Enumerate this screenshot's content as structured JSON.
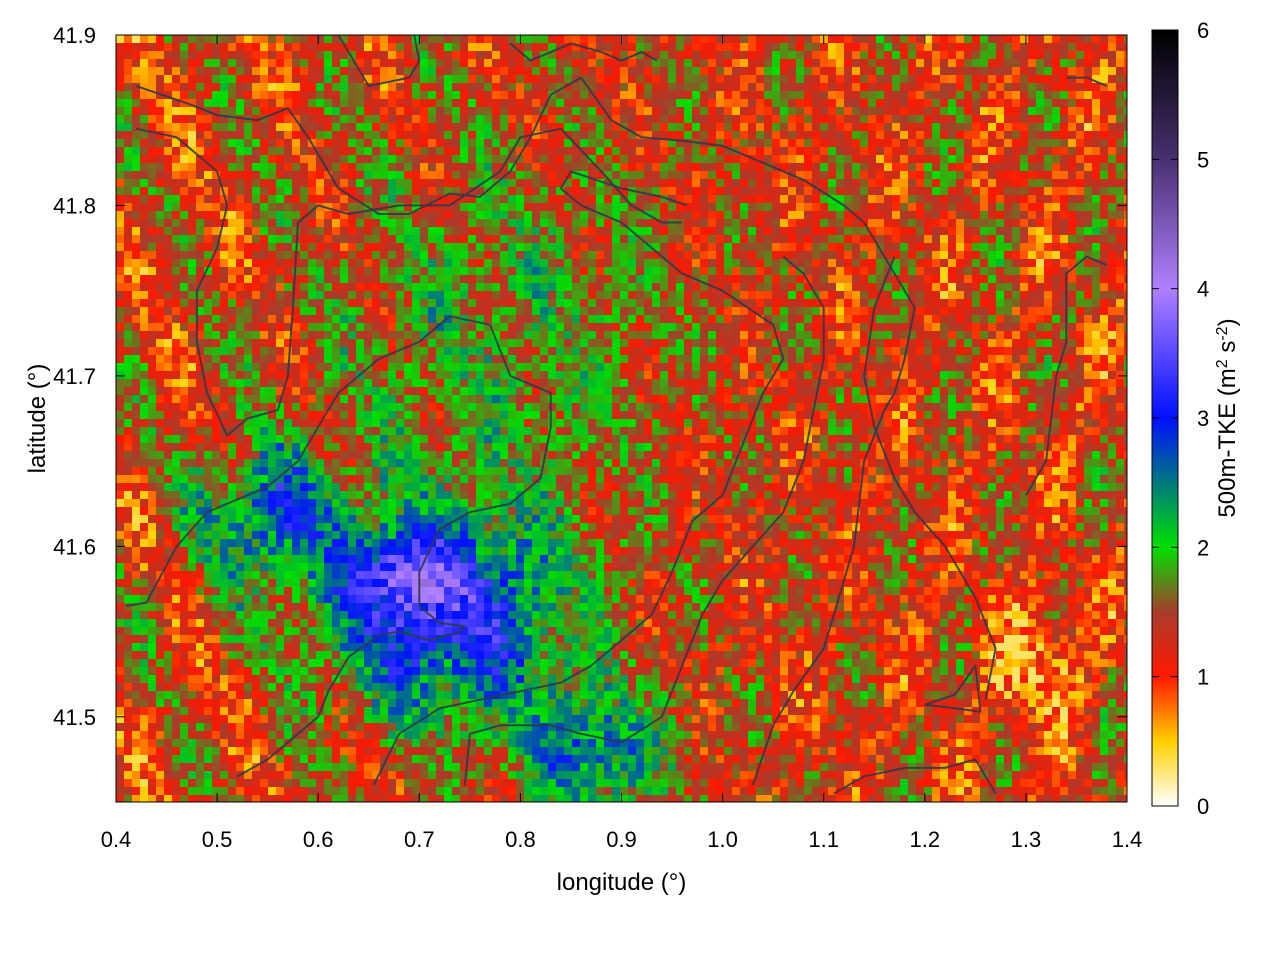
{
  "chart_data": {
    "type": "heatmap",
    "title": "",
    "xlabel": "longitude (°)",
    "ylabel": "latitude (°)",
    "xlim": [
      0.4,
      1.4
    ],
    "ylim": [
      41.45,
      41.9
    ],
    "xticks": [
      0.4,
      0.5,
      0.6,
      0.7,
      0.8,
      0.9,
      1.0,
      1.1,
      1.2,
      1.3,
      1.4
    ],
    "xtick_labels": [
      "0.4",
      "0.5",
      "0.6",
      "0.7",
      "0.8",
      "0.9",
      "1.0",
      "1.1",
      "1.2",
      "1.3",
      "1.4"
    ],
    "yticks": [
      41.5,
      41.6,
      41.7,
      41.8,
      41.9
    ],
    "ytick_labels": [
      "41.5",
      "41.6",
      "41.7",
      "41.8",
      "41.9"
    ],
    "grid": false,
    "colorbar": {
      "label": "500m-TKE (m² s⁻²)",
      "label_main": "500m-TKE (m",
      "label_sup1": "2",
      "label_mid": " s",
      "label_sup2": "-2",
      "label_end": ")",
      "range": [
        0,
        6
      ],
      "ticks": [
        0,
        1,
        2,
        3,
        4,
        5,
        6
      ],
      "tick_labels": [
        "0",
        "1",
        "2",
        "3",
        "4",
        "5",
        "6"
      ],
      "stops": [
        {
          "value": 0.0,
          "color": "#ffffff"
        },
        {
          "value": 0.5,
          "color": "#ffd000"
        },
        {
          "value": 1.0,
          "color": "#ff1800"
        },
        {
          "value": 1.5,
          "color": "#a83c2c"
        },
        {
          "value": 2.0,
          "color": "#00e000"
        },
        {
          "value": 3.0,
          "color": "#0010ff"
        },
        {
          "value": 4.0,
          "color": "#b080ff"
        },
        {
          "value": 5.0,
          "color": "#483070"
        },
        {
          "value": 6.0,
          "color": "#000000"
        }
      ]
    },
    "contour_color": "#2f3a4a",
    "description_regions": {
      "high_tke_area": "blue/violet band from about lon 0.5–0.9, lat 41.45–41.68 with values up to ~4",
      "low_tke_area": "orange patch near lon 1.28–1.36, lat 41.5–41.57 with values ~0.7"
    }
  }
}
